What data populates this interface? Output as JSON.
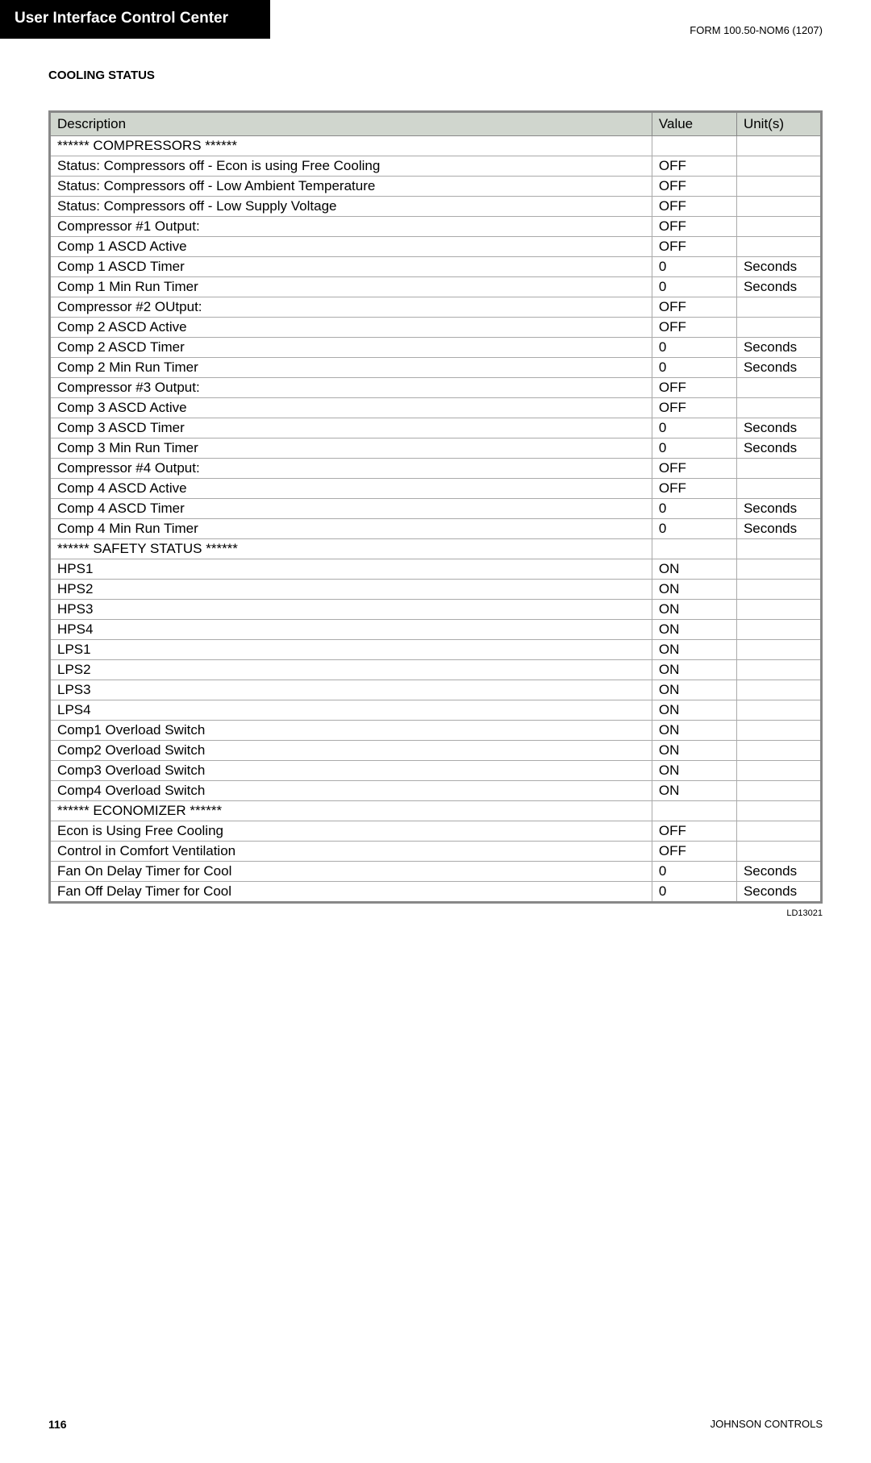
{
  "header": {
    "title": "User Interface Control Center",
    "formCode": "FORM 100.50-NOM6 (1207)"
  },
  "sectionTitle": "COOLING STATUS",
  "table": {
    "columns": [
      "Description",
      "Value",
      "Unit(s)"
    ],
    "header_bg": "#d0d6ce",
    "border_color": "#888888",
    "rows": [
      {
        "desc": "****** COMPRESSORS  ******",
        "value": "",
        "units": "",
        "indent": false
      },
      {
        "desc": "Status: Compressors off - Econ is using Free Cooling",
        "value": "OFF",
        "units": "",
        "indent": false
      },
      {
        "desc": "Status: Compressors off - Low Ambient Temperature",
        "value": "OFF",
        "units": "",
        "indent": false
      },
      {
        "desc": "Status: Compressors off - Low Supply Voltage",
        "value": "OFF",
        "units": "",
        "indent": false
      },
      {
        "desc": "Compressor #1 Output:",
        "value": "OFF",
        "units": "",
        "indent": false
      },
      {
        "desc": "Comp 1 ASCD Active",
        "value": "OFF",
        "units": "",
        "indent": true
      },
      {
        "desc": "Comp 1 ASCD Timer",
        "value": "0",
        "units": "Seconds",
        "indent": true
      },
      {
        "desc": "Comp 1 Min Run Timer",
        "value": "0",
        "units": "Seconds",
        "indent": true
      },
      {
        "desc": "Compressor #2 OUtput:",
        "value": "OFF",
        "units": "",
        "indent": false
      },
      {
        "desc": "Comp 2 ASCD Active",
        "value": "OFF",
        "units": "",
        "indent": true
      },
      {
        "desc": "Comp 2 ASCD Timer",
        "value": "0",
        "units": "Seconds",
        "indent": true
      },
      {
        "desc": "Comp 2 Min Run Timer",
        "value": "0",
        "units": "Seconds",
        "indent": true
      },
      {
        "desc": "Compressor #3 Output:",
        "value": "OFF",
        "units": "",
        "indent": false
      },
      {
        "desc": "Comp 3 ASCD Active",
        "value": "OFF",
        "units": "",
        "indent": true
      },
      {
        "desc": "Comp 3 ASCD Timer",
        "value": "0",
        "units": "Seconds",
        "indent": true
      },
      {
        "desc": "Comp 3 Min Run Timer",
        "value": "0",
        "units": "Seconds",
        "indent": true
      },
      {
        "desc": "Compressor #4 Output:",
        "value": "OFF",
        "units": "",
        "indent": false
      },
      {
        "desc": "Comp 4 ASCD Active",
        "value": "OFF",
        "units": "",
        "indent": true
      },
      {
        "desc": "Comp 4 ASCD Timer",
        "value": "0",
        "units": "Seconds",
        "indent": true
      },
      {
        "desc": "Comp 4 Min Run Timer",
        "value": "0",
        "units": "Seconds",
        "indent": true
      },
      {
        "desc": "****** SAFETY STATUS  ******",
        "value": "",
        "units": "",
        "indent": false
      },
      {
        "desc": "HPS1",
        "value": "ON",
        "units": "",
        "indent": false
      },
      {
        "desc": "HPS2",
        "value": "ON",
        "units": "",
        "indent": false
      },
      {
        "desc": "HPS3",
        "value": "ON",
        "units": "",
        "indent": false
      },
      {
        "desc": "HPS4",
        "value": "ON",
        "units": "",
        "indent": false
      },
      {
        "desc": "LPS1",
        "value": "ON",
        "units": "",
        "indent": false
      },
      {
        "desc": "LPS2",
        "value": "ON",
        "units": "",
        "indent": false
      },
      {
        "desc": "LPS3",
        "value": "ON",
        "units": "",
        "indent": false
      },
      {
        "desc": "LPS4",
        "value": "ON",
        "units": "",
        "indent": false
      },
      {
        "desc": "Comp1 Overload Switch",
        "value": "ON",
        "units": "",
        "indent": false
      },
      {
        "desc": "Comp2 Overload Switch",
        "value": "ON",
        "units": "",
        "indent": false
      },
      {
        "desc": "Comp3 Overload Switch",
        "value": "ON",
        "units": "",
        "indent": false
      },
      {
        "desc": "Comp4 Overload Switch",
        "value": "ON",
        "units": "",
        "indent": false
      },
      {
        "desc": "****** ECONOMIZER  ******",
        "value": "",
        "units": "",
        "indent": false
      },
      {
        "desc": "Econ is Using Free Cooling",
        "value": "OFF",
        "units": "",
        "indent": false
      },
      {
        "desc": "Control in Comfort Ventilation",
        "value": "OFF",
        "units": "",
        "indent": false
      },
      {
        "desc": "Fan On Delay Timer for Cool",
        "value": "0",
        "units": "Seconds",
        "indent": false
      },
      {
        "desc": "Fan Off Delay Timer for Cool",
        "value": "0",
        "units": "Seconds",
        "indent": false
      }
    ]
  },
  "figureCode": "LD13021",
  "footer": {
    "pageNumber": "116",
    "company": "JOHNSON CONTROLS"
  }
}
